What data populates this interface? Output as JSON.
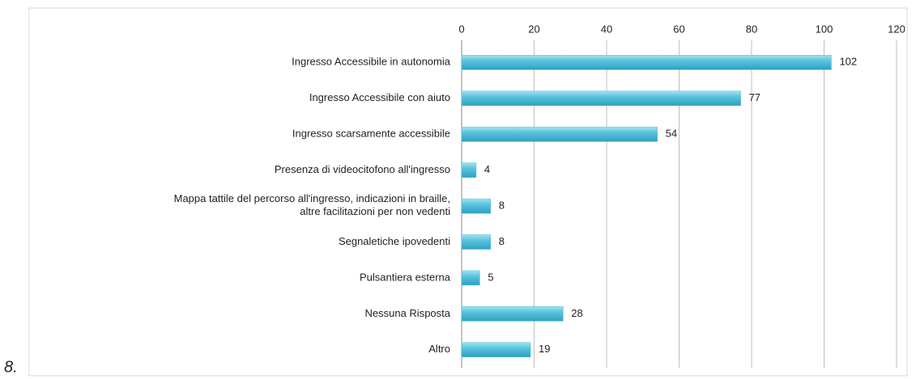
{
  "caption": "8.",
  "chart_data": {
    "type": "bar",
    "orientation": "horizontal",
    "categories": [
      "Ingresso Accessibile in autonomia",
      "Ingresso Accessibile con aiuto",
      "Ingresso scarsamente accessibile",
      "Presenza di videocitofono all'ingresso",
      "Mappa tattile del percorso all'ingresso, indicazioni in braille,\naltre facilitazioni per non vedenti",
      "Segnaletiche ipovedenti",
      "Pulsantiera esterna",
      "Nessuna Risposta",
      "Altro"
    ],
    "values": [
      102,
      77,
      54,
      4,
      8,
      8,
      5,
      28,
      19
    ],
    "color": "#4bbcd8",
    "xlim": [
      0,
      120
    ],
    "xticks": [
      0,
      20,
      40,
      60,
      80,
      100,
      120
    ],
    "grid": true
  }
}
